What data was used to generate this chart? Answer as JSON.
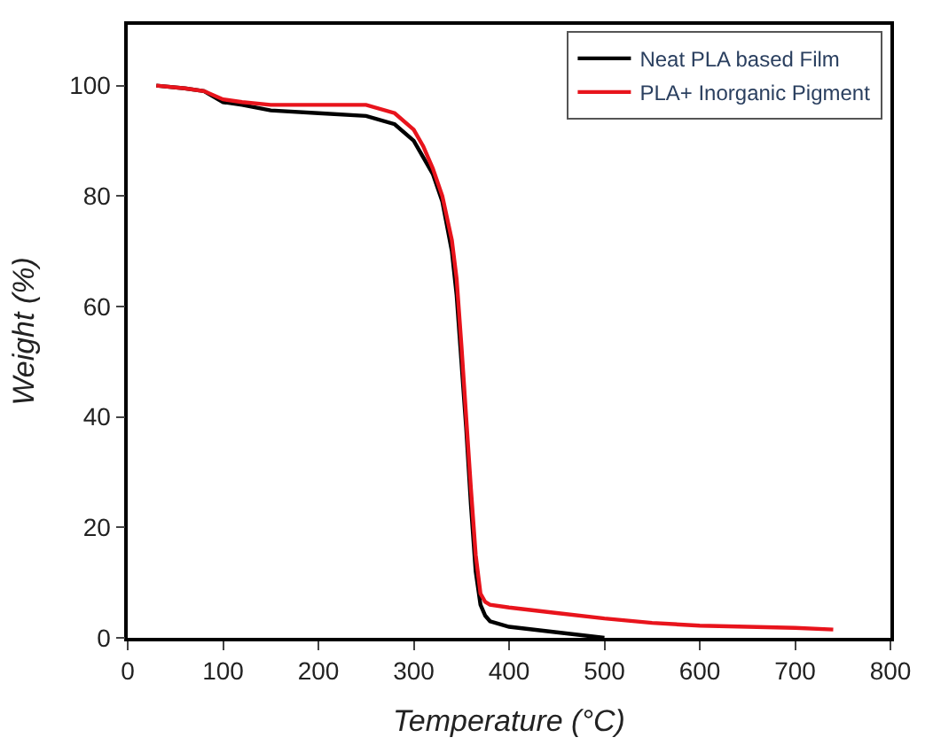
{
  "chart_data": {
    "type": "line",
    "xlabel": "Temperature (°C)",
    "ylabel": "Weight (%)",
    "xlim": [
      0,
      800
    ],
    "xticks": [
      0,
      100,
      200,
      300,
      400,
      500,
      600,
      700,
      800
    ],
    "ylim": [
      0,
      111
    ],
    "yticks": [
      0,
      20,
      40,
      60,
      80,
      100
    ],
    "legend": "top right",
    "marker": "none",
    "line_style": "solid",
    "series": [
      {
        "name": "Neat PLA based Film",
        "color": "#000000",
        "x": [
          30,
          60,
          80,
          100,
          120,
          150,
          200,
          250,
          280,
          300,
          310,
          320,
          330,
          340,
          345,
          350,
          355,
          360,
          365,
          370,
          375,
          380,
          400,
          450,
          500
        ],
        "values": [
          100,
          99.5,
          99,
          97,
          96.5,
          95.5,
          95,
          94.5,
          93,
          90,
          87,
          84,
          79,
          70,
          62,
          50,
          38,
          24,
          12,
          6,
          4,
          3,
          2,
          1,
          0
        ]
      },
      {
        "name": "PLA+ Inorganic Pigment",
        "color": "#e8141c",
        "x": [
          30,
          60,
          80,
          100,
          120,
          150,
          200,
          250,
          280,
          300,
          310,
          320,
          330,
          340,
          345,
          350,
          355,
          360,
          365,
          370,
          375,
          380,
          400,
          450,
          500,
          550,
          600,
          650,
          700,
          740
        ],
        "values": [
          100,
          99.5,
          99,
          97.5,
          97,
          96.5,
          96.5,
          96.5,
          95,
          92,
          89,
          85,
          80,
          72,
          65,
          53,
          40,
          27,
          15,
          8,
          6.5,
          6,
          5.5,
          4.5,
          3.5,
          2.7,
          2.2,
          2,
          1.8,
          1.5
        ]
      }
    ]
  }
}
